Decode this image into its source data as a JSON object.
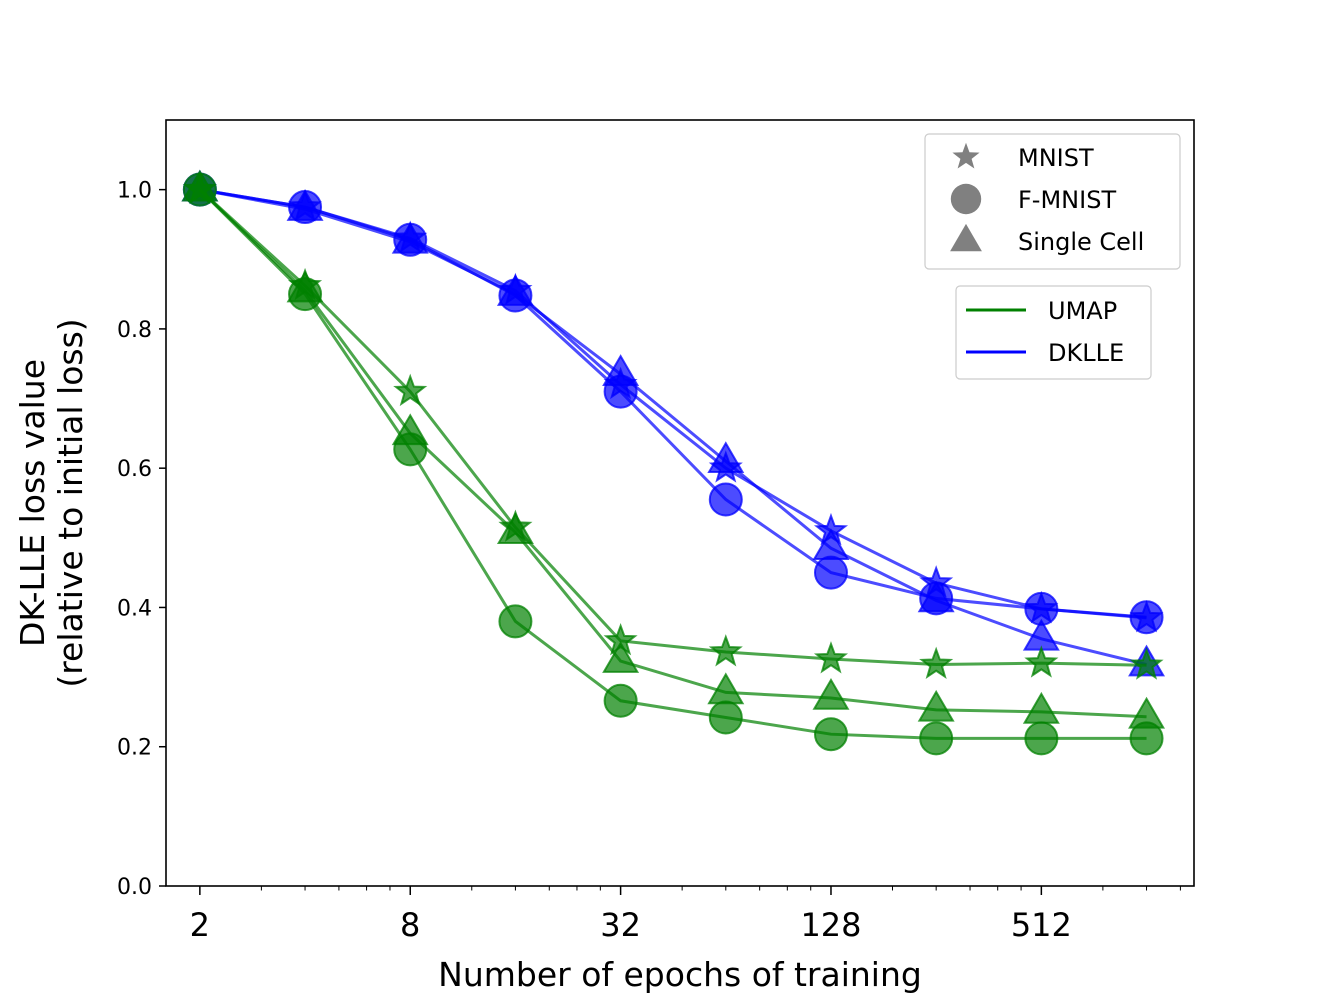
{
  "chart_data": {
    "type": "line",
    "xscale": "log2",
    "xlabel": "Number of epochs of training",
    "ylabel_line1": "DK-LLE loss value",
    "ylabel_line2": "(relative to initial loss)",
    "xlim": [
      1.6,
      1400
    ],
    "ylim": [
      0.0,
      1.1
    ],
    "xticks": [
      2,
      8,
      32,
      128,
      512
    ],
    "xtick_labels": [
      "2",
      "8",
      "32",
      "128",
      "512"
    ],
    "yticks": [
      0.0,
      0.2,
      0.4,
      0.6,
      0.8,
      1.0
    ],
    "ytick_labels": [
      "0.0",
      "0.2",
      "0.4",
      "0.6",
      "0.8",
      "1.0"
    ],
    "x": [
      2,
      4,
      8,
      16,
      32,
      64,
      128,
      256,
      512,
      1024
    ],
    "colors": {
      "UMAP": "#008000",
      "DKLLE": "#0000ff"
    },
    "series": [
      {
        "method": "DKLLE",
        "dataset": "MNIST",
        "marker": "star",
        "values": [
          1.0,
          0.975,
          0.93,
          0.855,
          0.72,
          0.6,
          0.51,
          0.435,
          0.398,
          0.385
        ]
      },
      {
        "method": "DKLLE",
        "dataset": "F-MNIST",
        "marker": "circle",
        "values": [
          1.0,
          0.975,
          0.928,
          0.848,
          0.71,
          0.555,
          0.45,
          0.413,
          0.398,
          0.386
        ]
      },
      {
        "method": "DKLLE",
        "dataset": "Single Cell",
        "marker": "triangle",
        "values": [
          1.0,
          0.972,
          0.925,
          0.85,
          0.735,
          0.61,
          0.485,
          0.41,
          0.355,
          0.318
        ]
      },
      {
        "method": "UMAP",
        "dataset": "MNIST",
        "marker": "star",
        "values": [
          1.0,
          0.862,
          0.71,
          0.515,
          0.352,
          0.336,
          0.326,
          0.318,
          0.32,
          0.317
        ]
      },
      {
        "method": "UMAP",
        "dataset": "F-MNIST",
        "marker": "circle",
        "values": [
          1.0,
          0.85,
          0.627,
          0.38,
          0.266,
          0.242,
          0.218,
          0.212,
          0.212,
          0.212
        ]
      },
      {
        "method": "UMAP",
        "dataset": "Single Cell",
        "marker": "triangle",
        "values": [
          1.0,
          0.855,
          0.65,
          0.508,
          0.323,
          0.278,
          0.27,
          0.253,
          0.25,
          0.243
        ]
      }
    ],
    "legend_markers": [
      {
        "marker": "star",
        "label": "MNIST"
      },
      {
        "marker": "circle",
        "label": "F-MNIST"
      },
      {
        "marker": "triangle",
        "label": "Single Cell"
      }
    ],
    "legend_lines": [
      {
        "method": "UMAP",
        "label": "UMAP"
      },
      {
        "method": "DKLLE",
        "label": "DKLLE"
      }
    ],
    "legend_placement": "top-right"
  }
}
